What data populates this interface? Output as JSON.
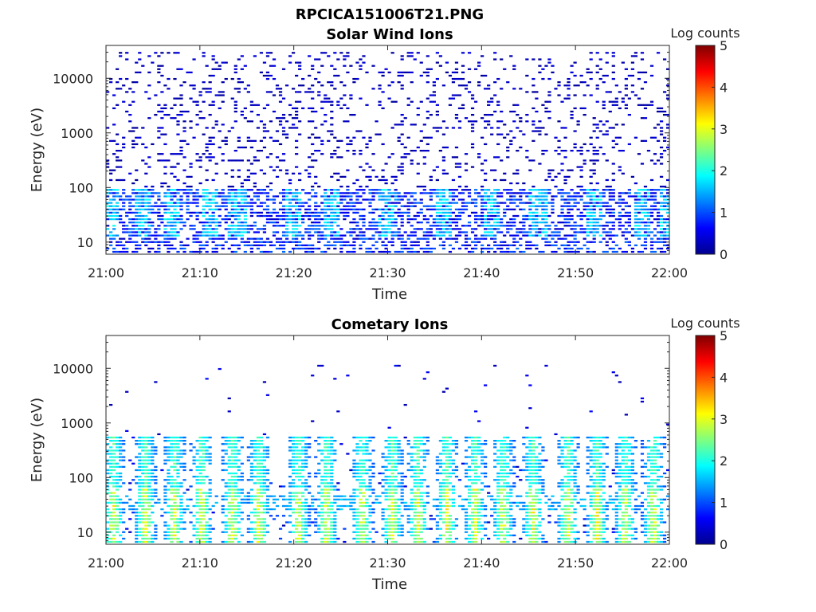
{
  "figure": {
    "title": "RPCICA151006T21.PNG"
  },
  "chart_data": [
    {
      "type": "heatmap",
      "title": "Solar Wind Ions",
      "xlabel": "Time",
      "ylabel": "Energy (eV)",
      "x_ticks": [
        "21:00",
        "21:10",
        "21:20",
        "21:30",
        "21:40",
        "21:50",
        "22:00"
      ],
      "x_range": [
        "21:00",
        "22:00"
      ],
      "y_scale": "log",
      "y_ticks": [
        "10",
        "100",
        "1000",
        "10000"
      ],
      "y_range": [
        6,
        40000
      ],
      "colorbar": {
        "label": "Log counts",
        "ticks": [
          "0",
          "1",
          "2",
          "3",
          "4",
          "5"
        ],
        "range": [
          0,
          5
        ],
        "colormap": "jet"
      },
      "description_of_values": "Sparse counts 0-1 log across 10 eV - 30 keV; denser 1-2 log counts below 100 eV",
      "bursts_minutes": [
        0.5,
        4,
        7,
        11,
        14,
        20,
        24,
        30,
        36,
        41,
        46,
        52,
        57,
        60
      ],
      "burst_peak_log_counts": 2
    },
    {
      "type": "heatmap",
      "title": "Cometary Ions",
      "xlabel": "Time",
      "ylabel": "Energy (eV)",
      "x_ticks": [
        "21:00",
        "21:10",
        "21:20",
        "21:30",
        "21:40",
        "21:50",
        "22:00"
      ],
      "x_range": [
        "21:00",
        "22:00"
      ],
      "y_scale": "log",
      "y_ticks": [
        "10",
        "100",
        "1000",
        "10000"
      ],
      "y_range": [
        6,
        40000
      ],
      "colorbar": {
        "label": "Log counts",
        "ticks": [
          "0",
          "1",
          "2",
          "3",
          "4",
          "5"
        ],
        "range": [
          0,
          5
        ],
        "colormap": "jet"
      },
      "description_of_values": "Periodic bursts from ~10 eV up to ~500 eV, peak ~3 log counts near 20-50 eV",
      "bursts_minutes": [
        0.8,
        4.2,
        7.3,
        10.2,
        13.5,
        16.3,
        20.5,
        23.5,
        27.3,
        30.5,
        33.2,
        36.3,
        39.3,
        42.3,
        45.5,
        49.2,
        52.3,
        55.3,
        58.3
      ],
      "burst_peak_log_counts": 3
    }
  ]
}
